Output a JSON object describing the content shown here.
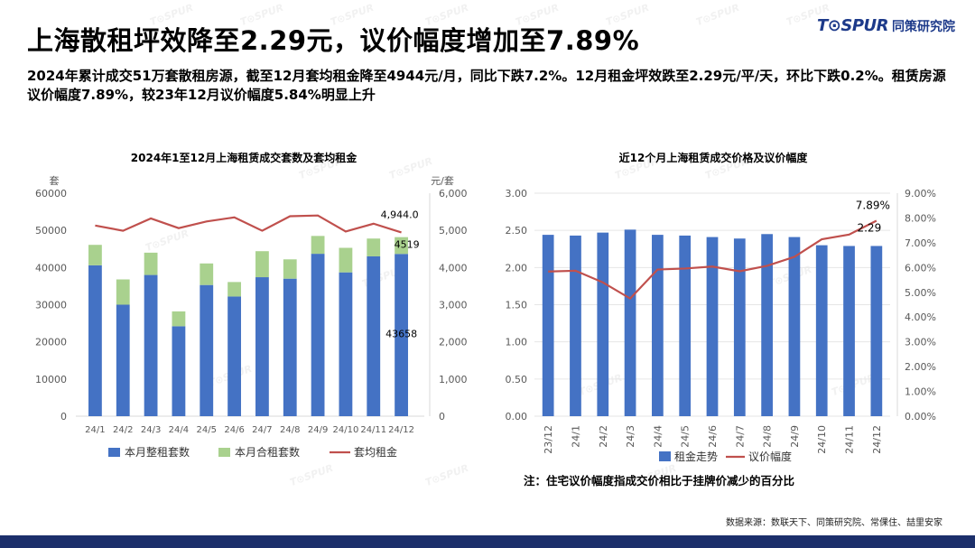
{
  "page": {
    "title": "上海散租坪效降至2.29元，议价幅度增加至7.89%",
    "subtitle": "2024年累计成交51万套散租房源，截至12月套均租金降至4944元/月，同比下跌7.2%。12月租金坪效跌至2.29元/平/天，环比下跌0.2%。租赁房源议价幅度7.89%，较23年12月议价幅度5.84%明显上升",
    "logo_mark": "T⊙SPUR",
    "logo_cn": "同策研究院",
    "watermark": "T⊙SPUR",
    "note": "注：住宅议价幅度指成交价相比于挂牌价减少的百分比",
    "source": "数据来源：数联天下、同策研究院、常倮住、喆里安家"
  },
  "colors": {
    "bar_blue": "#4472c4",
    "bar_green": "#a9d18e",
    "line_red": "#c0504d",
    "axis": "#595959",
    "grid": "#e6e6e6",
    "footer": "#1c2f6b"
  },
  "chart_data": [
    {
      "type": "bar",
      "title": "2024年1至12月上海租赁成交套数及套均租金",
      "stacked": true,
      "categories": [
        "24/1",
        "24/2",
        "24/3",
        "24/4",
        "24/5",
        "24/6",
        "24/7",
        "24/8",
        "24/9",
        "24/10",
        "24/11",
        "24/12"
      ],
      "series": [
        {
          "name": "本月整租套数",
          "kind": "bar",
          "axis": "left",
          "values": [
            40600,
            30000,
            38000,
            24200,
            35300,
            32200,
            37400,
            37000,
            43700,
            38700,
            43000,
            43658
          ]
        },
        {
          "name": "本月合租套数",
          "kind": "bar",
          "axis": "left",
          "values": [
            5500,
            6800,
            6000,
            4000,
            5800,
            3900,
            7000,
            5200,
            4800,
            6600,
            4800,
            4519
          ]
        },
        {
          "name": "套均租金",
          "kind": "line",
          "axis": "right",
          "values": [
            5130,
            4990,
            5320,
            5060,
            5240,
            5350,
            4990,
            5380,
            5400,
            4970,
            5180,
            4944
          ]
        }
      ],
      "ylabel_left": "套",
      "ylabel_right": "元/套",
      "ylim_left": [
        0,
        60000
      ],
      "ylim_right": [
        0,
        6000
      ],
      "yticks_left": [
        "0",
        "10000",
        "20000",
        "30000",
        "40000",
        "50000",
        "60000"
      ],
      "yticks_right": [
        "0",
        "1,000",
        "2,000",
        "3,000",
        "4,000",
        "5,000",
        "6,000"
      ],
      "data_labels": {
        "rent_last": "4,944.0",
        "shared_last": "4519",
        "whole_last": "43658"
      },
      "legend": [
        "本月整租套数",
        "本月合租套数",
        "套均租金"
      ],
      "legend_position": "bottom",
      "grid": false
    },
    {
      "type": "bar",
      "title": "近12个月上海租赁成交价格及议价幅度",
      "categories": [
        "23/12",
        "24/1",
        "24/2",
        "24/3",
        "24/4",
        "24/5",
        "24/6",
        "24/7",
        "24/8",
        "24/9",
        "24/10",
        "24/11",
        "24/12"
      ],
      "series": [
        {
          "name": "租金走势",
          "kind": "bar",
          "axis": "left",
          "values": [
            2.44,
            2.43,
            2.47,
            2.51,
            2.44,
            2.43,
            2.41,
            2.39,
            2.45,
            2.41,
            2.3,
            2.29,
            2.29
          ]
        },
        {
          "name": "议价幅度",
          "kind": "line",
          "axis": "right",
          "values": [
            5.84,
            5.87,
            5.4,
            4.75,
            5.92,
            5.96,
            6.04,
            5.85,
            6.07,
            6.43,
            7.14,
            7.33,
            7.89
          ]
        }
      ],
      "ylim_left": [
        0,
        3.0
      ],
      "ylim_right": [
        0,
        9.0
      ],
      "yticks_left": [
        "0.00",
        "0.50",
        "1.00",
        "1.50",
        "2.00",
        "2.50",
        "3.00"
      ],
      "yticks_right": [
        "0.00%",
        "1.00%",
        "2.00%",
        "3.00%",
        "4.00%",
        "5.00%",
        "6.00%",
        "7.00%",
        "8.00%",
        "9.00%"
      ],
      "data_labels": {
        "rate_last": "7.89%",
        "rent_last": "2.29"
      },
      "legend": [
        "租金走势",
        "议价幅度"
      ],
      "legend_position": "bottom",
      "grid": true
    }
  ]
}
